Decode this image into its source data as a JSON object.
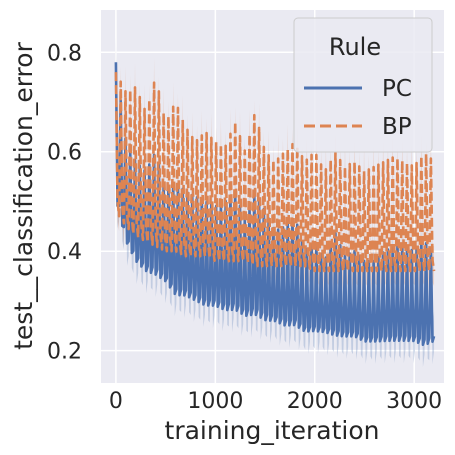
{
  "chart_data": {
    "type": "line",
    "xlabel": "training_iteration",
    "ylabel": "test__classification_error",
    "xlim": [
      -150,
      3300
    ],
    "ylim": [
      0.135,
      0.885
    ],
    "xticks": [
      0,
      1000,
      2000,
      3000
    ],
    "yticks": [
      0.2,
      0.4,
      0.6,
      0.8
    ],
    "grid": true,
    "legend": {
      "title": "Rule",
      "placement": "top-right",
      "entries": [
        "PC",
        "BP"
      ]
    },
    "colors": {
      "PC": "#4c72b0",
      "BP": "#dd8452",
      "background": "#eaeaf2",
      "grid": "#ffffff"
    },
    "series": [
      {
        "name": "PC",
        "line_style": "solid",
        "x": [
          0,
          100,
          200,
          300,
          400,
          500,
          600,
          700,
          800,
          900,
          1000,
          1100,
          1200,
          1300,
          1400,
          1500,
          1600,
          1700,
          1800,
          1900,
          2000,
          2100,
          2200,
          2300,
          2400,
          2500,
          2600,
          2700,
          2800,
          2900,
          3000,
          3100,
          3200
        ],
        "trough": [
          0.49,
          0.41,
          0.37,
          0.35,
          0.34,
          0.33,
          0.3,
          0.3,
          0.29,
          0.28,
          0.28,
          0.27,
          0.27,
          0.26,
          0.26,
          0.25,
          0.25,
          0.24,
          0.24,
          0.23,
          0.23,
          0.23,
          0.22,
          0.22,
          0.22,
          0.21,
          0.21,
          0.21,
          0.21,
          0.21,
          0.21,
          0.2,
          0.21
        ],
        "peak": [
          0.78,
          0.62,
          0.58,
          0.56,
          0.6,
          0.52,
          0.54,
          0.52,
          0.51,
          0.5,
          0.49,
          0.5,
          0.52,
          0.46,
          0.52,
          0.48,
          0.44,
          0.45,
          0.47,
          0.4,
          0.42,
          0.38,
          0.44,
          0.39,
          0.4,
          0.38,
          0.38,
          0.4,
          0.41,
          0.41,
          0.4,
          0.42,
          0.4
        ]
      },
      {
        "name": "BP",
        "line_style": "dashed",
        "x": [
          0,
          100,
          200,
          300,
          400,
          500,
          600,
          700,
          800,
          900,
          1000,
          1100,
          1200,
          1300,
          1400,
          1500,
          1600,
          1700,
          1800,
          1900,
          2000,
          2100,
          2200,
          2300,
          2400,
          2500,
          2600,
          2700,
          2800,
          2900,
          3000,
          3100,
          3200
        ],
        "trough": [
          0.48,
          0.45,
          0.43,
          0.42,
          0.41,
          0.4,
          0.4,
          0.39,
          0.39,
          0.39,
          0.38,
          0.38,
          0.38,
          0.38,
          0.37,
          0.37,
          0.37,
          0.37,
          0.37,
          0.37,
          0.36,
          0.36,
          0.36,
          0.36,
          0.36,
          0.36,
          0.36,
          0.36,
          0.36,
          0.36,
          0.36,
          0.36,
          0.36
        ],
        "peak": [
          0.76,
          0.72,
          0.73,
          0.68,
          0.75,
          0.66,
          0.7,
          0.65,
          0.62,
          0.64,
          0.62,
          0.61,
          0.66,
          0.6,
          0.68,
          0.6,
          0.58,
          0.6,
          0.62,
          0.58,
          0.6,
          0.56,
          0.6,
          0.57,
          0.58,
          0.56,
          0.57,
          0.58,
          0.59,
          0.58,
          0.57,
          0.6,
          0.58
        ]
      }
    ]
  }
}
